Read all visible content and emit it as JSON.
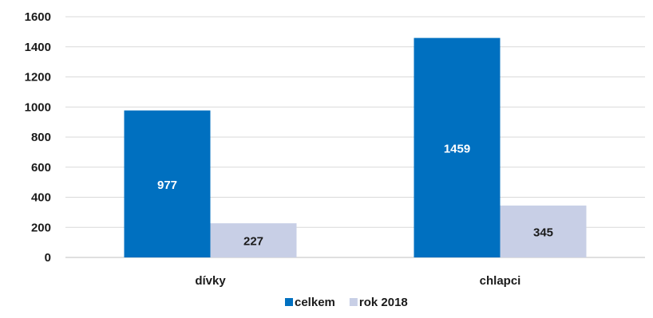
{
  "chart_data": {
    "type": "bar",
    "categories": [
      "dívky",
      "chlapci"
    ],
    "series": [
      {
        "name": "celkem",
        "values": [
          977,
          1459
        ],
        "color": "#0070c0",
        "label_color": "#ffffff"
      },
      {
        "name": "rok 2018",
        "values": [
          227,
          345
        ],
        "color": "#c8cfe6",
        "label_color": "#1a1a1a"
      }
    ],
    "title": "",
    "xlabel": "",
    "ylabel": "",
    "ylim": [
      0,
      1600
    ],
    "yticks": [
      "0",
      "200",
      "400",
      "600",
      "800",
      "1000",
      "1200",
      "1400",
      "1600"
    ],
    "grid": true,
    "legend_position": "bottom"
  }
}
